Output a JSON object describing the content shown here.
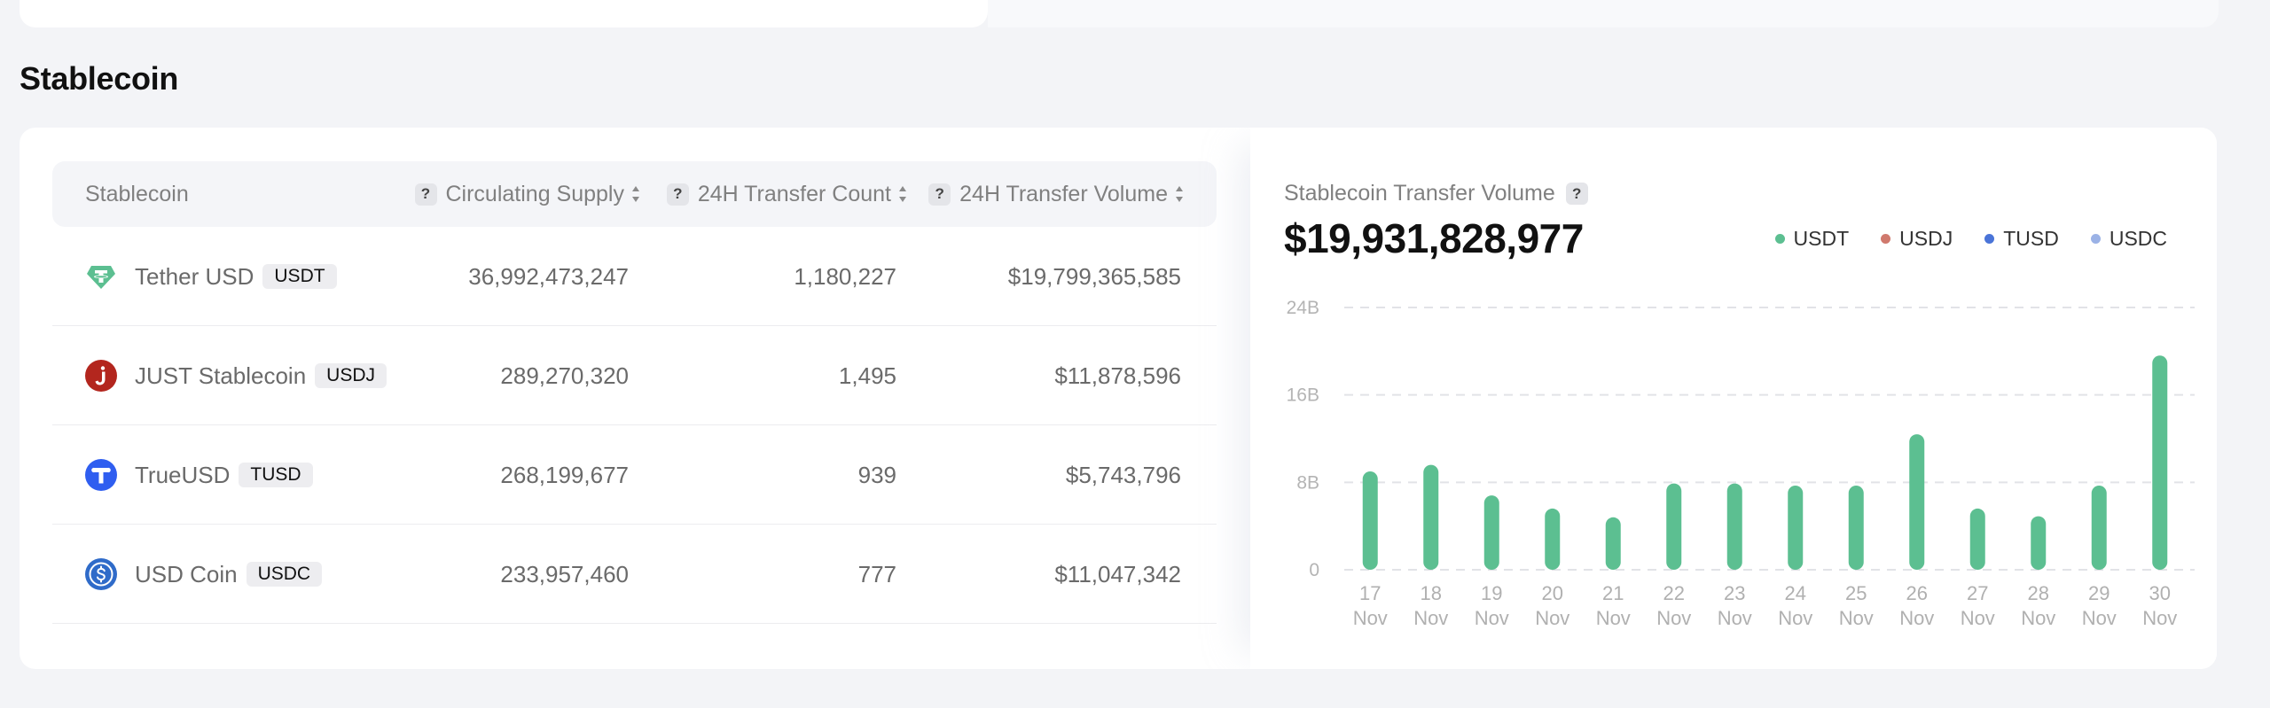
{
  "section": {
    "title": "Stablecoin"
  },
  "table": {
    "headers": {
      "name": "Stablecoin",
      "supply": "Circulating Supply",
      "count": "24H Transfer Count",
      "volume": "24H Transfer Volume"
    },
    "help_glyph": "?",
    "rows": [
      {
        "name": "Tether USD",
        "ticker": "USDT",
        "icon": "tether-icon",
        "supply": "36,992,473,247",
        "count": "1,180,227",
        "volume": "$19,799,365,585"
      },
      {
        "name": "JUST Stablecoin",
        "ticker": "USDJ",
        "icon": "just-stablecoin-icon",
        "supply": "289,270,320",
        "count": "1,495",
        "volume": "$11,878,596"
      },
      {
        "name": "TrueUSD",
        "ticker": "TUSD",
        "icon": "trueusd-icon",
        "supply": "268,199,677",
        "count": "939",
        "volume": "$5,743,796"
      },
      {
        "name": "USD Coin",
        "ticker": "USDC",
        "icon": "usd-coin-icon",
        "supply": "233,957,460",
        "count": "777",
        "volume": "$11,047,342"
      }
    ]
  },
  "chart_panel": {
    "title": "Stablecoin Transfer Volume",
    "help_glyph": "?",
    "total": "$19,931,828,977",
    "legend": [
      {
        "name": "USDT",
        "color": "#5cbf91"
      },
      {
        "name": "USDJ",
        "color": "#d0796d"
      },
      {
        "name": "TUSD",
        "color": "#4a74d8"
      },
      {
        "name": "USDC",
        "color": "#9bb2e6"
      }
    ]
  },
  "chart_data": {
    "type": "bar",
    "title": "Stablecoin Transfer Volume",
    "categories": [
      "17 Nov",
      "18 Nov",
      "19 Nov",
      "20 Nov",
      "21 Nov",
      "22 Nov",
      "23 Nov",
      "24 Nov",
      "25 Nov",
      "26 Nov",
      "27 Nov",
      "28 Nov",
      "29 Nov",
      "30 Nov"
    ],
    "category_lines": [
      [
        "17",
        "Nov"
      ],
      [
        "18",
        "Nov"
      ],
      [
        "19",
        "Nov"
      ],
      [
        "20",
        "Nov"
      ],
      [
        "21",
        "Nov"
      ],
      [
        "22",
        "Nov"
      ],
      [
        "23",
        "Nov"
      ],
      [
        "24",
        "Nov"
      ],
      [
        "25",
        "Nov"
      ],
      [
        "26",
        "Nov"
      ],
      [
        "27",
        "Nov"
      ],
      [
        "28",
        "Nov"
      ],
      [
        "29",
        "Nov"
      ],
      [
        "30",
        "Nov"
      ]
    ],
    "series": [
      {
        "name": "USDT",
        "color": "#5cbf91",
        "values": [
          9.0,
          9.6,
          6.8,
          5.6,
          4.8,
          7.9,
          7.9,
          7.7,
          7.7,
          12.4,
          5.6,
          4.9,
          7.7,
          19.6
        ]
      }
    ],
    "yticks": [
      0,
      8,
      16,
      24
    ],
    "ytick_labels": [
      "0",
      "8B",
      "16B",
      "24B"
    ],
    "ylim": [
      0,
      24
    ],
    "unit": "B",
    "grid": true,
    "legend_position": "top-right"
  }
}
